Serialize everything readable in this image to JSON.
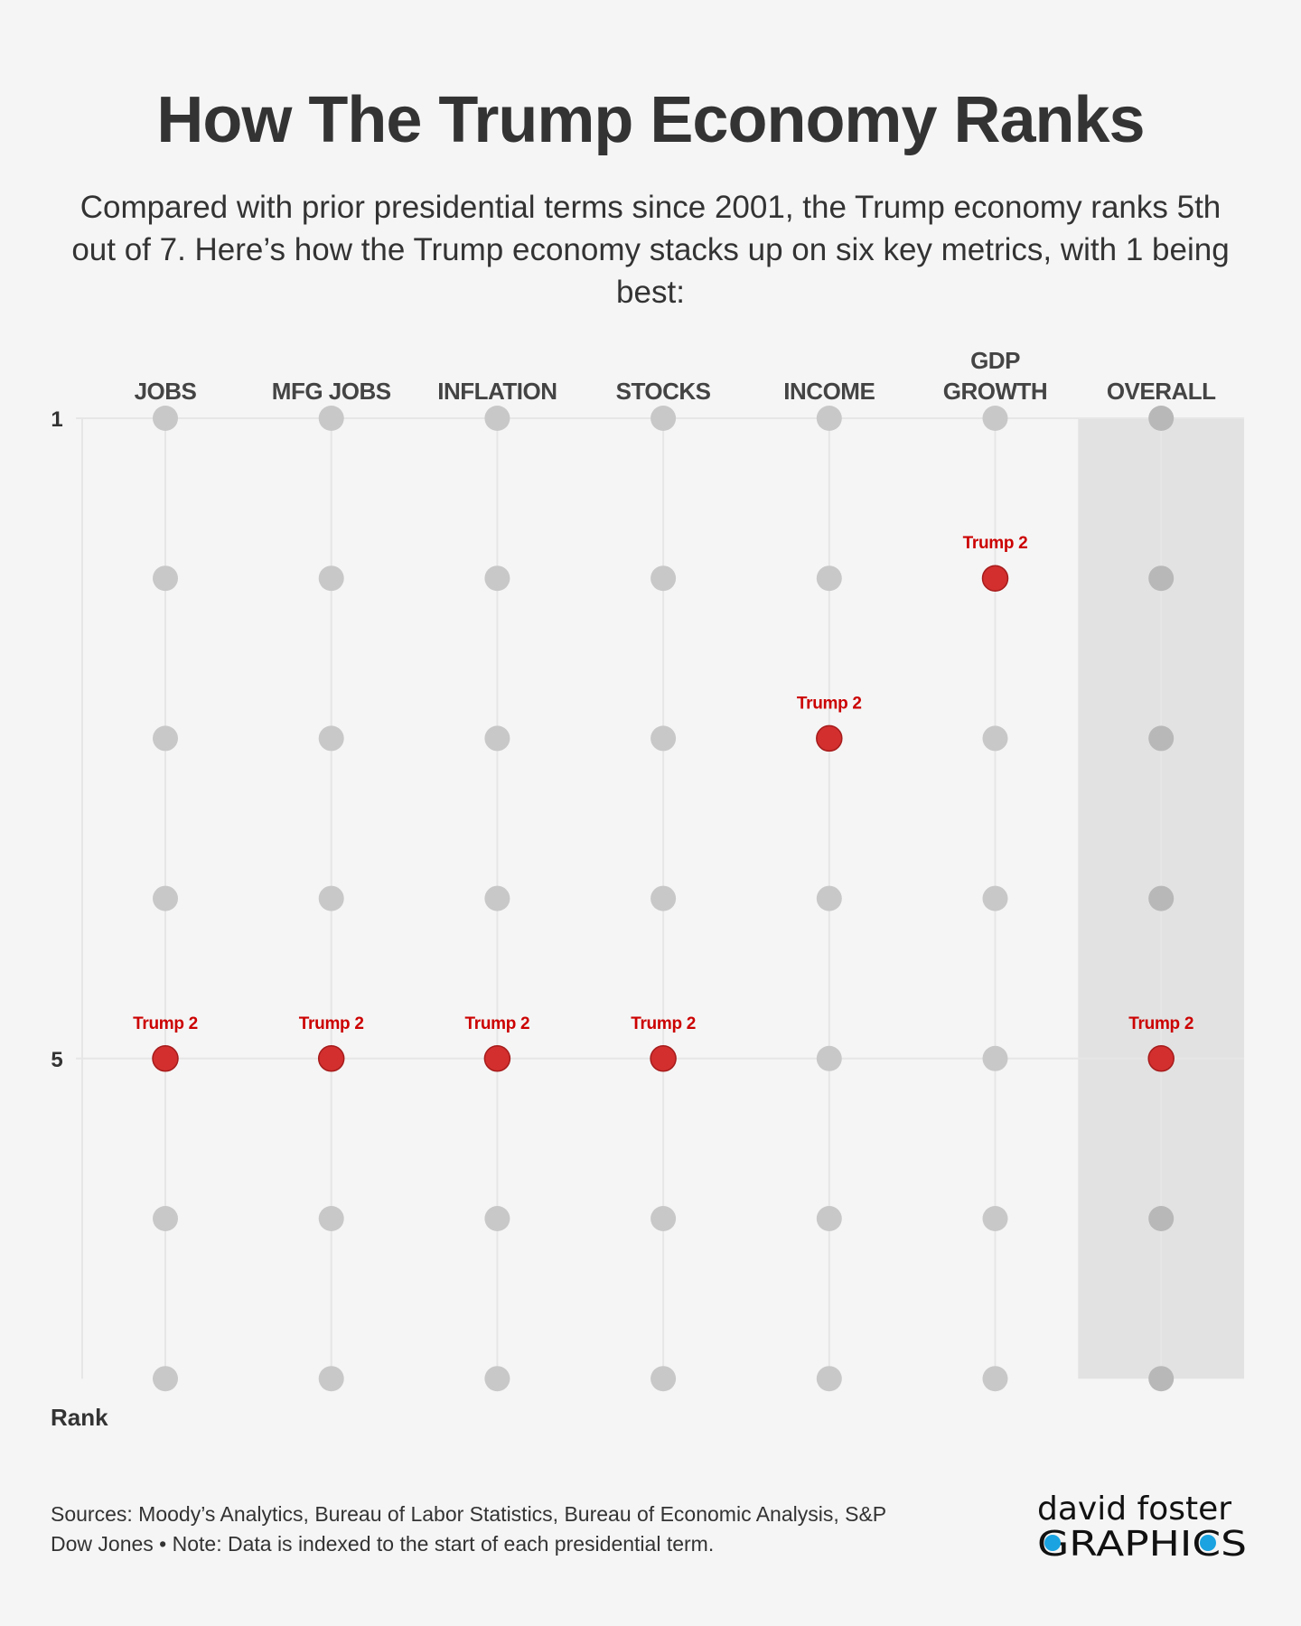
{
  "title": "How The Trump Economy Ranks",
  "subtitle": "Compared with prior presidential terms since 2001, the Trump economy ranks 5th out of 7. Here’s how the Trump economy stacks up on six key metrics, with 1 being best:",
  "footer": "Sources: Moody’s Analytics, Bureau of Labor Statistics, Bureau of Economic Analysis, S&P Dow Jones • Note: Data is indexed to the start of each presidential term.",
  "logo": {
    "line1": "david foster",
    "line2": "GRAPHICS"
  },
  "colors": {
    "background": "#f5f5f5",
    "dot": "#c8c8c8",
    "highlight": "#d32f2f",
    "label": "#cc0000",
    "band": "#e2e2e2"
  },
  "chart_data": {
    "type": "scatter",
    "categories": [
      [
        "JOBS"
      ],
      [
        "MFG JOBS"
      ],
      [
        "INFLATION"
      ],
      [
        "STOCKS"
      ],
      [
        "INCOME"
      ],
      [
        "GDP",
        "GROWTH"
      ],
      [
        "OVERALL"
      ]
    ],
    "rank_range": [
      1,
      7
    ],
    "ylabel": "Rank",
    "y_tick_labels": [
      {
        "rank": 1,
        "label": "1"
      },
      {
        "rank": 5,
        "label": "5"
      }
    ],
    "highlight_label": "Trump 2",
    "highlight_ranks": [
      5,
      5,
      5,
      5,
      3,
      2,
      5
    ],
    "shaded_category": "OVERALL"
  }
}
